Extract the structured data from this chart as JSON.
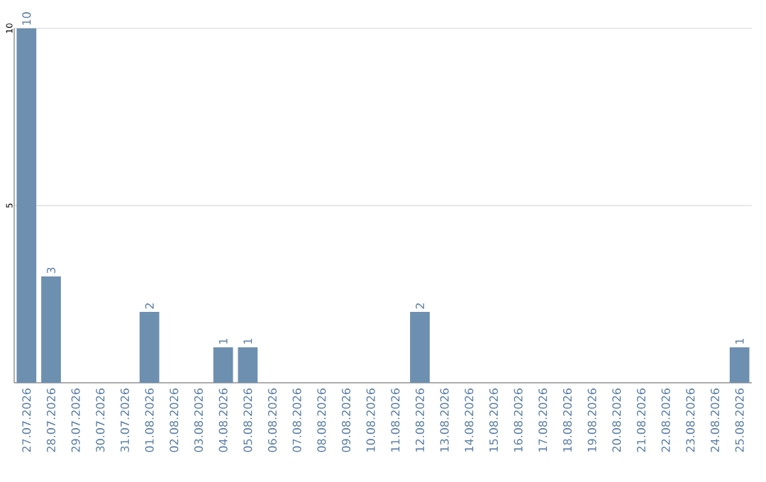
{
  "chart_data": {
    "type": "bar",
    "categories": [
      "27.07.2026",
      "28.07.2026",
      "29.07.2026",
      "30.07.2026",
      "31.07.2026",
      "01.08.2026",
      "02.08.2026",
      "03.08.2026",
      "04.08.2026",
      "05.08.2026",
      "06.08.2026",
      "07.08.2026",
      "08.08.2026",
      "09.08.2026",
      "10.08.2026",
      "11.08.2026",
      "12.08.2026",
      "13.08.2026",
      "14.08.2026",
      "15.08.2026",
      "16.08.2026",
      "17.08.2026",
      "18.08.2026",
      "19.08.2026",
      "20.08.2026",
      "21.08.2026",
      "22.08.2026",
      "23.08.2026",
      "24.08.2026",
      "25.08.2026"
    ],
    "values": [
      10,
      3,
      0,
      0,
      0,
      2,
      0,
      0,
      1,
      1,
      0,
      0,
      0,
      0,
      0,
      0,
      2,
      0,
      0,
      0,
      0,
      0,
      0,
      0,
      0,
      0,
      0,
      0,
      0,
      1
    ],
    "value_labels": [
      "10",
      "3",
      null,
      null,
      null,
      "2",
      null,
      null,
      "1",
      "1",
      null,
      null,
      null,
      null,
      null,
      null,
      "2",
      null,
      null,
      null,
      null,
      null,
      null,
      null,
      null,
      null,
      null,
      null,
      null,
      "1"
    ],
    "color": "#6d8fb0",
    "ylim": [
      0,
      10
    ],
    "yticks": [
      5,
      10
    ],
    "grid": "y"
  }
}
